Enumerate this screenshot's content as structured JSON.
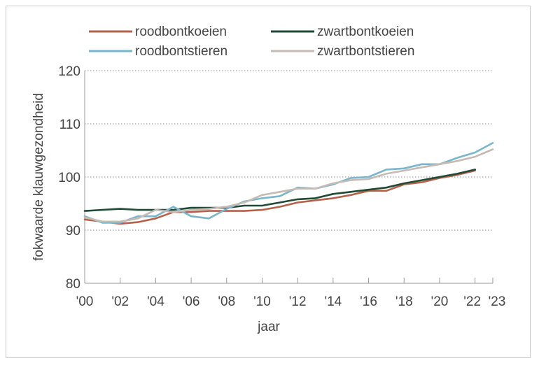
{
  "chart_data": {
    "type": "line",
    "title": "",
    "xlabel": "jaar",
    "ylabel": "fokwaarde klauwgezondheid",
    "ylim": [
      80,
      120
    ],
    "xlim": [
      2000,
      2023
    ],
    "yticks": [
      80,
      90,
      100,
      110,
      120
    ],
    "ytick_labels": [
      "80",
      "90",
      "100",
      "110",
      "120"
    ],
    "xticks": [
      2000,
      2002,
      2004,
      2006,
      2008,
      2010,
      2012,
      2014,
      2016,
      2018,
      2020,
      2022,
      2023
    ],
    "xtick_labels": [
      "'00",
      "'02",
      "'04",
      "'06",
      "'08",
      "'10",
      "'12",
      "'14",
      "'16",
      "'18",
      "'20",
      "'22",
      "'23"
    ],
    "grid": "horizontal dotted",
    "legend_position": "top",
    "x": [
      2000,
      2001,
      2002,
      2003,
      2004,
      2005,
      2006,
      2007,
      2008,
      2009,
      2010,
      2011,
      2012,
      2013,
      2014,
      2015,
      2016,
      2017,
      2018,
      2019,
      2020,
      2021,
      2022,
      2023
    ],
    "series": [
      {
        "name": "roodbontkoeien",
        "color": "#b5614a",
        "values": [
          92.0,
          91.6,
          91.2,
          91.5,
          92.2,
          93.4,
          93.4,
          93.6,
          93.6,
          93.6,
          93.8,
          94.4,
          95.2,
          95.6,
          96.0,
          96.6,
          97.4,
          97.4,
          98.6,
          99.0,
          99.8,
          100.4,
          101.2,
          null
        ]
      },
      {
        "name": "zwartbontkoeien",
        "color": "#1f4a36",
        "values": [
          93.6,
          93.8,
          94.0,
          93.8,
          93.8,
          93.8,
          94.2,
          94.2,
          94.2,
          94.6,
          94.6,
          95.2,
          95.8,
          96.0,
          96.8,
          97.2,
          97.6,
          98.0,
          98.8,
          99.4,
          100.0,
          100.6,
          101.4,
          null
        ]
      },
      {
        "name": "roodbontstieren",
        "color": "#79b6cb",
        "values": [
          92.6,
          91.4,
          91.4,
          92.6,
          92.6,
          94.4,
          92.6,
          92.2,
          94.0,
          95.4,
          96.0,
          96.4,
          98.0,
          97.8,
          98.6,
          99.8,
          100.0,
          101.4,
          101.6,
          102.4,
          102.4,
          103.6,
          104.6,
          106.4
        ]
      },
      {
        "name": "zwartbontstieren",
        "color": "#c6bab4",
        "values": [
          92.4,
          91.6,
          91.6,
          92.2,
          93.8,
          93.4,
          93.8,
          94.0,
          94.4,
          95.2,
          96.6,
          97.2,
          97.8,
          97.8,
          98.8,
          99.4,
          99.6,
          100.6,
          101.2,
          101.8,
          102.4,
          103.0,
          103.8,
          105.2
        ]
      }
    ]
  }
}
